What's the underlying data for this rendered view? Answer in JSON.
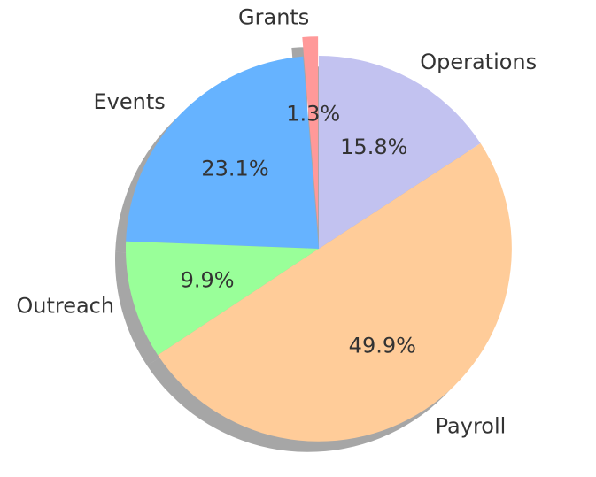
{
  "chart_data": {
    "type": "pie",
    "slices": [
      {
        "label": "Grants",
        "value": 1.3,
        "pct_label": "1.3%",
        "color": "#ff9999",
        "exploded": true
      },
      {
        "label": "Events",
        "value": 23.1,
        "pct_label": "23.1%",
        "color": "#66b3ff",
        "exploded": false
      },
      {
        "label": "Outreach",
        "value": 9.9,
        "pct_label": "9.9%",
        "color": "#99ff99",
        "exploded": false
      },
      {
        "label": "Payroll",
        "value": 49.9,
        "pct_label": "49.9%",
        "color": "#ffcc99",
        "exploded": false
      },
      {
        "label": "Operations",
        "value": 15.8,
        "pct_label": "15.8%",
        "color": "#c2c2f0",
        "exploded": false
      }
    ],
    "start_angle_deg": 90,
    "direction": "counterclockwise",
    "shadow": true,
    "legend": "none",
    "title": ""
  }
}
